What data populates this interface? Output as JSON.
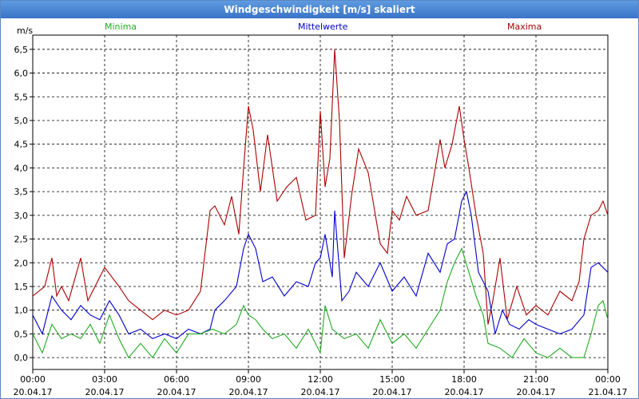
{
  "title": "Windgeschwindigkeit [m/s] skaliert",
  "legend": {
    "min": "Minima",
    "mean": "Mittelwerte",
    "max": "Maxima"
  },
  "colors": {
    "min": "#22aa22",
    "mean": "#0000cc",
    "max": "#aa0000",
    "title_bg": "#3a73c7"
  },
  "chart_data": {
    "type": "line",
    "title": "Windgeschwindigkeit [m/s] skaliert",
    "ylabel": "m/s",
    "ylim": [
      -0.25,
      6.8
    ],
    "xlim": [
      0,
      24
    ],
    "yticks": [
      "0,0",
      "0,5",
      "1,0",
      "1,5",
      "2,0",
      "2,5",
      "3,0",
      "3,5",
      "4,0",
      "4,5",
      "5,0",
      "5,5",
      "6,0",
      "6,5"
    ],
    "xticks": [
      {
        "time": "00:00",
        "date": "20.04.17"
      },
      {
        "time": "03:00",
        "date": "20.04.17"
      },
      {
        "time": "06:00",
        "date": "20.04.17"
      },
      {
        "time": "09:00",
        "date": "20.04.17"
      },
      {
        "time": "12:00",
        "date": "20.04.17"
      },
      {
        "time": "15:00",
        "date": "20.04.17"
      },
      {
        "time": "18:00",
        "date": "20.04.17"
      },
      {
        "time": "21:00",
        "date": "20.04.17"
      },
      {
        "time": "00:00",
        "date": "21.04.17"
      }
    ],
    "series": [
      {
        "name": "Maxima",
        "key": "max",
        "x": [
          0,
          0.5,
          0.8,
          1.0,
          1.2,
          1.5,
          2.0,
          2.3,
          2.6,
          3.0,
          3.3,
          3.6,
          4.0,
          4.5,
          5.0,
          5.5,
          6.0,
          6.5,
          7.0,
          7.4,
          7.6,
          8.0,
          8.3,
          8.6,
          8.8,
          9.0,
          9.2,
          9.5,
          9.8,
          10.2,
          10.6,
          11.0,
          11.4,
          11.8,
          12.0,
          12.2,
          12.4,
          12.6,
          12.8,
          13.0,
          13.3,
          13.6,
          14.0,
          14.5,
          14.8,
          15.0,
          15.3,
          15.6,
          16.0,
          16.5,
          17.0,
          17.2,
          17.5,
          17.8,
          18.0,
          18.2,
          18.5,
          18.8,
          19.0,
          19.2,
          19.5,
          19.8,
          20.2,
          20.6,
          21.0,
          21.5,
          22.0,
          22.5,
          22.8,
          23.0,
          23.3,
          23.6,
          23.8,
          24.0
        ],
        "values": [
          1.3,
          1.5,
          2.1,
          1.3,
          1.5,
          1.2,
          2.1,
          1.2,
          1.5,
          1.9,
          1.7,
          1.5,
          1.2,
          1.0,
          0.8,
          1.0,
          0.9,
          1.0,
          1.4,
          3.1,
          3.2,
          2.8,
          3.4,
          2.6,
          4.0,
          5.3,
          4.8,
          3.5,
          4.7,
          3.3,
          3.6,
          3.8,
          2.9,
          3.0,
          5.2,
          3.6,
          4.2,
          6.5,
          5.0,
          2.1,
          3.4,
          4.4,
          3.9,
          2.4,
          2.2,
          3.1,
          2.9,
          3.4,
          3.0,
          3.1,
          4.6,
          4.0,
          4.5,
          5.3,
          4.6,
          4.0,
          3.0,
          2.2,
          0.7,
          1.2,
          2.1,
          0.8,
          1.5,
          0.9,
          1.1,
          0.9,
          1.4,
          1.2,
          1.6,
          2.5,
          3.0,
          3.1,
          3.3,
          3.0
        ]
      },
      {
        "name": "Mittelwerte",
        "key": "mean",
        "x": [
          0,
          0.4,
          0.8,
          1.2,
          1.6,
          2.0,
          2.4,
          2.8,
          3.2,
          3.6,
          4.0,
          4.5,
          5.0,
          5.5,
          6.0,
          6.5,
          7.0,
          7.4,
          7.6,
          8.0,
          8.5,
          8.8,
          9.0,
          9.3,
          9.6,
          10.0,
          10.5,
          11.0,
          11.5,
          11.8,
          12.0,
          12.2,
          12.5,
          12.6,
          12.9,
          13.2,
          13.5,
          14.0,
          14.5,
          15.0,
          15.5,
          16.0,
          16.5,
          17.0,
          17.3,
          17.6,
          17.9,
          18.1,
          18.3,
          18.6,
          19.0,
          19.3,
          19.6,
          19.9,
          20.3,
          20.7,
          21.0,
          21.5,
          22.0,
          22.5,
          23.0,
          23.3,
          23.6,
          23.8,
          24.0
        ],
        "values": [
          0.9,
          0.5,
          1.3,
          1.0,
          0.8,
          1.1,
          0.9,
          0.8,
          1.2,
          0.9,
          0.5,
          0.6,
          0.4,
          0.5,
          0.4,
          0.6,
          0.5,
          0.6,
          1.0,
          1.2,
          1.5,
          2.3,
          2.6,
          2.3,
          1.6,
          1.7,
          1.3,
          1.6,
          1.5,
          2.0,
          2.1,
          2.6,
          1.7,
          3.1,
          1.2,
          1.4,
          1.8,
          1.5,
          2.0,
          1.4,
          1.7,
          1.3,
          2.2,
          1.8,
          2.4,
          2.5,
          3.3,
          3.5,
          3.0,
          1.8,
          1.4,
          0.5,
          1.0,
          0.7,
          0.6,
          0.8,
          0.7,
          0.6,
          0.5,
          0.6,
          0.9,
          1.9,
          2.0,
          1.9,
          1.8
        ]
      },
      {
        "name": "Minima",
        "key": "min",
        "x": [
          0,
          0.4,
          0.8,
          1.2,
          1.6,
          2.0,
          2.4,
          2.8,
          3.2,
          3.6,
          4.0,
          4.5,
          5.0,
          5.5,
          6.0,
          6.5,
          7.0,
          7.5,
          8.0,
          8.5,
          8.8,
          9.0,
          9.3,
          9.6,
          10.0,
          10.5,
          11.0,
          11.5,
          12.0,
          12.2,
          12.5,
          13.0,
          13.5,
          14.0,
          14.5,
          15.0,
          15.5,
          16.0,
          16.5,
          17.0,
          17.3,
          17.6,
          17.9,
          18.2,
          18.5,
          18.8,
          19.0,
          19.5,
          20.0,
          20.5,
          21.0,
          21.5,
          22.0,
          22.5,
          23.0,
          23.3,
          23.6,
          23.8,
          24.0
        ],
        "values": [
          0.5,
          0.1,
          0.7,
          0.4,
          0.5,
          0.4,
          0.7,
          0.3,
          0.9,
          0.4,
          0.0,
          0.3,
          0.0,
          0.4,
          0.1,
          0.5,
          0.5,
          0.6,
          0.5,
          0.7,
          1.1,
          0.9,
          0.8,
          0.6,
          0.4,
          0.5,
          0.2,
          0.6,
          0.1,
          1.1,
          0.6,
          0.4,
          0.5,
          0.2,
          0.8,
          0.3,
          0.5,
          0.2,
          0.6,
          1.0,
          1.6,
          2.0,
          2.3,
          1.8,
          1.3,
          0.9,
          0.3,
          0.2,
          0.0,
          0.4,
          0.1,
          0.0,
          0.2,
          0.0,
          0.0,
          0.5,
          1.1,
          1.2,
          0.8
        ]
      }
    ]
  }
}
